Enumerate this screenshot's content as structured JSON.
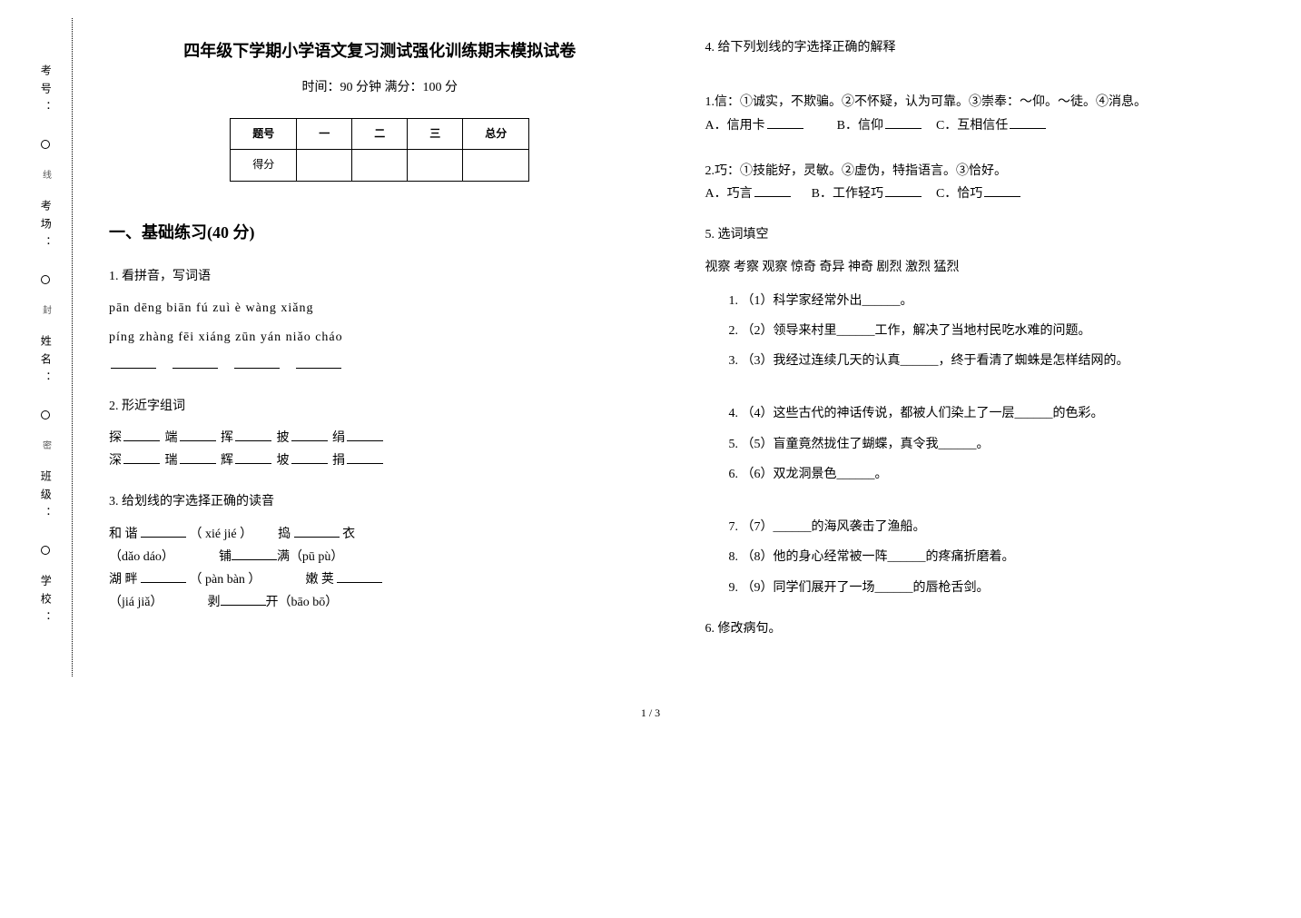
{
  "title": "四年级下学期小学语文复习测试强化训练期末模拟试卷",
  "subtitle": "时间：90 分钟   满分：100 分",
  "margin_labels": {
    "school": "学校：",
    "class": "班级：",
    "name": "姓名：",
    "room": "考场：",
    "seat": "考号：",
    "seal": "密",
    "cut": "封",
    "line": "线"
  },
  "score_table": {
    "headers": [
      "题号",
      "一",
      "二",
      "三",
      "总分"
    ],
    "row_label": "得分"
  },
  "section1_heading": "一、基础练习(40 分)",
  "q1": {
    "title": "1. 看拼音，写词语",
    "line1": "pān dēng   biān fú   zuì è    wàng xiǎng",
    "line2": "píng zhàng  fēi xiáng  zūn yán  niǎo cháo"
  },
  "q2": {
    "title": "2. 形近字组词",
    "row1": [
      "探",
      "端",
      "挥",
      "披",
      "绢"
    ],
    "row2": [
      "深",
      "瑞",
      "辉",
      "坡",
      "捐"
    ]
  },
  "q3": {
    "title": "3. 给划线的字选择正确的读音",
    "items": [
      {
        "word": "和 谐",
        "opts": "（ xié     jié ）"
      },
      {
        "word": "捣",
        "suffix": " 衣 ",
        "opts": "（dǎo   dáo）"
      },
      {
        "word": "铺",
        "suffix": "满",
        "opts": "（pū    pù）"
      },
      {
        "word": "湖 畔",
        "opts": "（ pàn    bàn ）"
      },
      {
        "word": "嫩 荚",
        "opts": "（jiá    jiǎ）"
      },
      {
        "word": "剥",
        "suffix": "开",
        "opts": "（bāo   bō）"
      }
    ]
  },
  "q4": {
    "title": "4. 给下列划线的字选择正确的解释",
    "group1": {
      "head": "1.信：①诚实，不欺骗。②不怀疑，认为可靠。③崇奉：～仰。～徒。④消息。",
      "a": "A．信用卡",
      "b": "B．信仰",
      "c": "C．互相信任"
    },
    "group2": {
      "head": "2.巧：①技能好，灵敏。②虚伪，特指语言。③恰好。",
      "a": "A．巧言",
      "b": "B．工作轻巧",
      "c": "C．恰巧"
    }
  },
  "q5": {
    "title": "5. 选词填空",
    "bank": "视察      考察      观察          惊奇      奇异      神奇       剧烈     激烈     猛烈",
    "items": [
      "（1）科学家经常外出______。",
      "（2）领导来村里______工作，解决了当地村民吃水难的问题。",
      "（3）我经过连续几天的认真______，终于看清了蜘蛛是怎样结网的。",
      "（4）这些古代的神话传说，都被人们染上了一层______的色彩。",
      "（5）盲童竟然拢住了蝴蝶，真令我______。",
      "（6）双龙洞景色______。",
      "（7）______的海风袭击了渔船。",
      "（8）他的身心经常被一阵______的疼痛折磨着。",
      "（9）同学们展开了一场______的唇枪舌剑。"
    ]
  },
  "q6": {
    "title": "6. 修改病句。"
  },
  "page_num": "1 / 3"
}
